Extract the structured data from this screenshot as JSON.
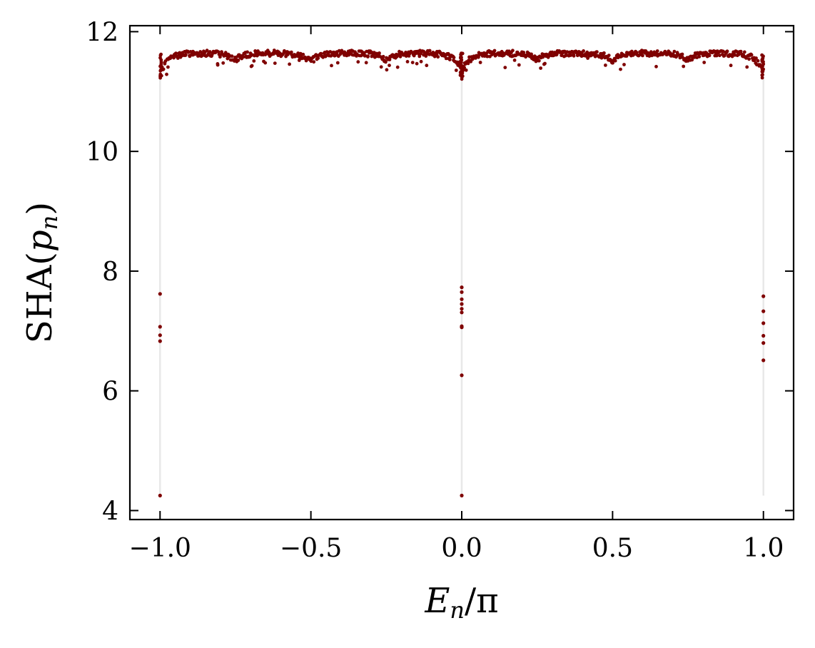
{
  "chart_data": {
    "type": "scatter",
    "title": "",
    "xlabel": {
      "main": "E",
      "sub": "n",
      "rest": "/π"
    },
    "ylabel": {
      "main": "SHA(",
      "var": "p",
      "sub": "n",
      "rest": ")"
    },
    "xlim": [
      -1.1,
      1.1
    ],
    "ylim": [
      3.85,
      12.1
    ],
    "xticks": [
      -1.0,
      -0.5,
      0.0,
      0.5,
      1.0
    ],
    "xtick_labels": [
      "−1.0",
      "−0.5",
      "0.0",
      "0.5",
      "1.0"
    ],
    "yticks": [
      4,
      6,
      8,
      10,
      12
    ],
    "ytick_labels": [
      "4",
      "6",
      "8",
      "10",
      "12"
    ],
    "grid": false,
    "marker_color": "#7f0000",
    "guide_line_color": "#e8e8e8",
    "guide_lines_x": [
      -1.0,
      0.0,
      1.0
    ],
    "band": {
      "n_points": 900,
      "x_range": [
        -1.0,
        1.0
      ],
      "y_upper": 11.72,
      "y_mean": 11.64,
      "dip_centers": [
        -1.0,
        -0.75,
        -0.5,
        -0.25,
        0.0,
        0.25,
        0.5,
        0.75,
        1.0
      ],
      "dip_depths": [
        0.35,
        0.12,
        0.14,
        0.12,
        0.3,
        0.12,
        0.14,
        0.12,
        0.35
      ],
      "edge_min": 11.22
    },
    "series": [
      {
        "values": [
          {
            "x": -1.0,
            "y": 7.62
          },
          {
            "x": -1.0,
            "y": 7.07
          },
          {
            "x": -1.0,
            "y": 6.93
          },
          {
            "x": -1.0,
            "y": 6.83
          },
          {
            "x": -1.0,
            "y": 4.25
          },
          {
            "x": 0.0,
            "y": 7.73
          },
          {
            "x": 0.0,
            "y": 7.65
          },
          {
            "x": 0.0,
            "y": 7.53
          },
          {
            "x": 0.0,
            "y": 7.45
          },
          {
            "x": 0.0,
            "y": 7.37
          },
          {
            "x": 0.0,
            "y": 7.31
          },
          {
            "x": 0.0,
            "y": 7.08
          },
          {
            "x": 0.0,
            "y": 7.06
          },
          {
            "x": 0.0,
            "y": 6.26
          },
          {
            "x": 0.0,
            "y": 4.25
          },
          {
            "x": 1.0,
            "y": 7.58
          },
          {
            "x": 1.0,
            "y": 7.33
          },
          {
            "x": 1.0,
            "y": 7.13
          },
          {
            "x": 1.0,
            "y": 6.92
          },
          {
            "x": 1.0,
            "y": 6.8
          },
          {
            "x": 1.0,
            "y": 6.51
          }
        ]
      }
    ]
  }
}
